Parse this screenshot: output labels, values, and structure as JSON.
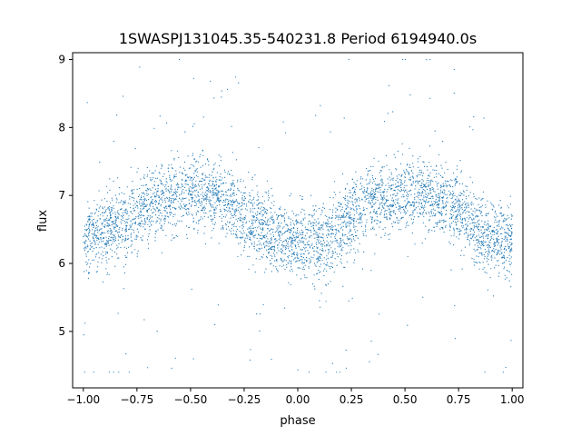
{
  "chart_data": {
    "type": "scatter",
    "title": "1SWASPJ131045.35-540231.8 Period 6194940.0s",
    "xlabel": "phase",
    "ylabel": "flux",
    "xlim": [
      -1.05,
      1.05
    ],
    "ylim": [
      4.17,
      9.1
    ],
    "xticks": [
      -1.0,
      -0.75,
      -0.5,
      -0.25,
      0.0,
      0.25,
      0.5,
      0.75,
      1.0
    ],
    "xtick_labels": [
      "−1.00",
      "−0.75",
      "−0.50",
      "−0.25",
      "0.00",
      "0.25",
      "0.50",
      "0.75",
      "1.00"
    ],
    "yticks": [
      5,
      6,
      7,
      8,
      9
    ],
    "ytick_labels": [
      "5",
      "6",
      "7",
      "8",
      "9"
    ],
    "grid": false,
    "legend": "none",
    "point_color": "#1f77b4",
    "series": [
      {
        "profile_phase": [
          -1.0,
          -0.9,
          -0.8,
          -0.7,
          -0.6,
          -0.5,
          -0.4,
          -0.3,
          -0.2,
          -0.1,
          0.0,
          0.1,
          0.2,
          0.3,
          0.4,
          0.5,
          0.6,
          0.7,
          0.8,
          0.9,
          1.0
        ],
        "profile_flux_center": [
          6.35,
          6.5,
          6.6,
          6.85,
          6.95,
          7.05,
          7.0,
          6.85,
          6.6,
          6.35,
          6.3,
          6.35,
          6.5,
          6.85,
          6.95,
          7.05,
          7.0,
          6.85,
          6.6,
          6.35,
          6.35
        ],
        "spread": 0.35,
        "flux_min": 4.4,
        "flux_max": 9.0
      }
    ]
  }
}
